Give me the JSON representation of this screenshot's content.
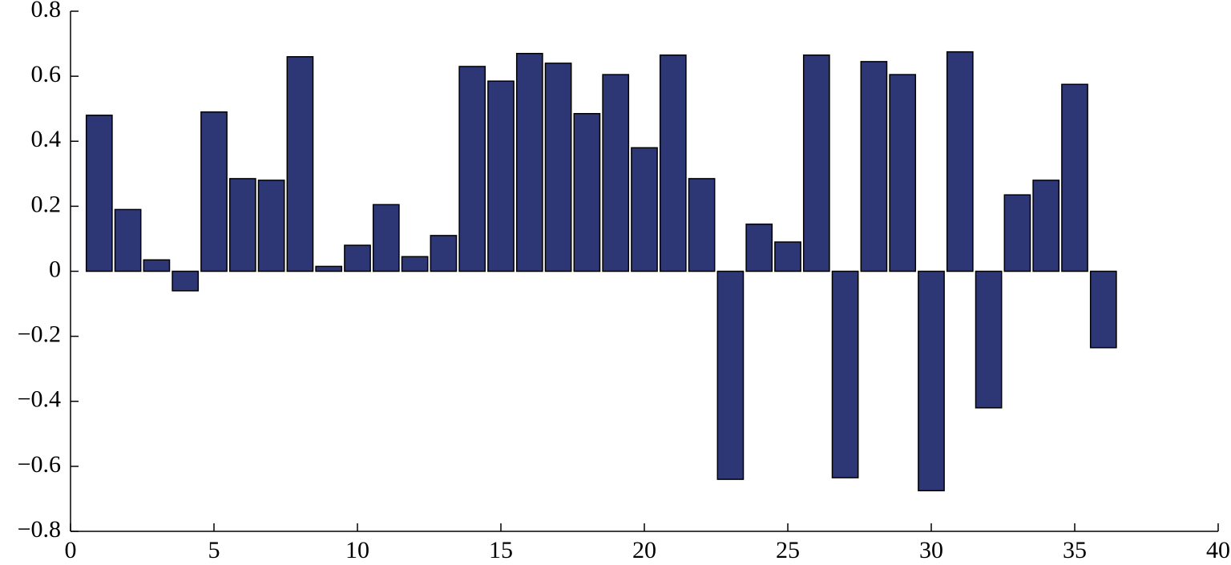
{
  "chart_data": {
    "type": "bar",
    "x": [
      1,
      2,
      3,
      4,
      5,
      6,
      7,
      8,
      9,
      10,
      11,
      12,
      13,
      14,
      15,
      16,
      17,
      18,
      19,
      20,
      21,
      22,
      23,
      24,
      25,
      26,
      27,
      28,
      29,
      30,
      31,
      32,
      33,
      34,
      35,
      36
    ],
    "values": [
      0.48,
      0.19,
      0.035,
      -0.06,
      0.49,
      0.285,
      0.28,
      0.66,
      0.015,
      0.08,
      0.205,
      0.045,
      0.11,
      0.63,
      0.585,
      0.67,
      0.64,
      0.485,
      0.605,
      0.38,
      0.665,
      0.285,
      -0.64,
      0.145,
      0.09,
      0.665,
      -0.635,
      0.645,
      0.605,
      -0.675,
      0.675,
      -0.42,
      0.235,
      0.28,
      0.575,
      -0.235
    ],
    "color": "#2e3775",
    "xlim": [
      0,
      40
    ],
    "xticks": [
      0,
      5,
      10,
      15,
      20,
      25,
      30,
      35,
      40
    ],
    "ylim": [
      -0.8,
      0.8
    ],
    "yticks": [
      {
        "value": -0.8,
        "label": "−0.8"
      },
      {
        "value": -0.6,
        "label": "−0.6"
      },
      {
        "value": -0.4,
        "label": "−0.4"
      },
      {
        "value": -0.2,
        "label": "−0.2"
      },
      0,
      0.2,
      0.4,
      0.6,
      0.8
    ]
  }
}
